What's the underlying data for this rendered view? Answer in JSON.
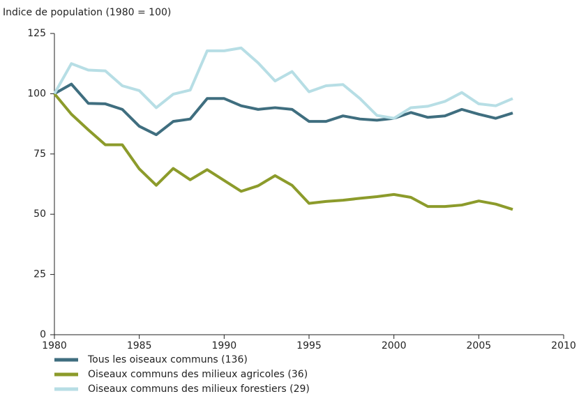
{
  "chart_data": {
    "type": "line",
    "ylabel": "Indice de population (1980 = 100)",
    "x": [
      1980,
      1981,
      1982,
      1983,
      1984,
      1985,
      1986,
      1987,
      1988,
      1989,
      1990,
      1991,
      1992,
      1993,
      1994,
      1995,
      1996,
      1997,
      1998,
      1999,
      2000,
      2001,
      2002,
      2003,
      2004,
      2005,
      2006,
      2007
    ],
    "series": [
      {
        "name": "Tous les oiseaux communs (136)",
        "color": "#3f6e7f",
        "values": [
          100,
          104,
          96,
          95.8,
          93.5,
          86.5,
          83,
          88.5,
          89.5,
          98,
          98,
          95,
          93.5,
          94.2,
          93.5,
          88.5,
          88.5,
          90.8,
          89.5,
          89,
          89.8,
          92.2,
          90.2,
          90.8,
          93.5,
          91.5,
          89.8,
          92
        ]
      },
      {
        "name": "Oiseaux communs des milieux agricoles (36)",
        "color": "#8c9b2b",
        "values": [
          100,
          91.5,
          85,
          78.8,
          78.8,
          68.8,
          62,
          69,
          64.3,
          68.5,
          64,
          59.5,
          61.8,
          66,
          62,
          54.5,
          55.3,
          55.8,
          56.6,
          57.3,
          58.2,
          57,
          53.2,
          53.2,
          53.8,
          55.5,
          54.2,
          52
        ]
      },
      {
        "name": "Oiseaux communs des milieux forestiers (29)",
        "color": "#b7dee5",
        "values": [
          100,
          112.5,
          109.8,
          109.5,
          103.3,
          101.3,
          94.2,
          99.8,
          101.5,
          117.8,
          117.8,
          119,
          112.8,
          105.3,
          109.2,
          100.8,
          103.3,
          103.8,
          98,
          91,
          89.8,
          94.2,
          94.8,
          96.8,
          100.5,
          95.8,
          95,
          98
        ]
      }
    ],
    "xlim": [
      1980,
      2010
    ],
    "xticks": [
      1980,
      1985,
      1990,
      1995,
      2000,
      2005,
      2010
    ],
    "ylim": [
      0,
      125
    ],
    "yticks": [
      0,
      25,
      50,
      75,
      100,
      125
    ],
    "grid": false
  }
}
